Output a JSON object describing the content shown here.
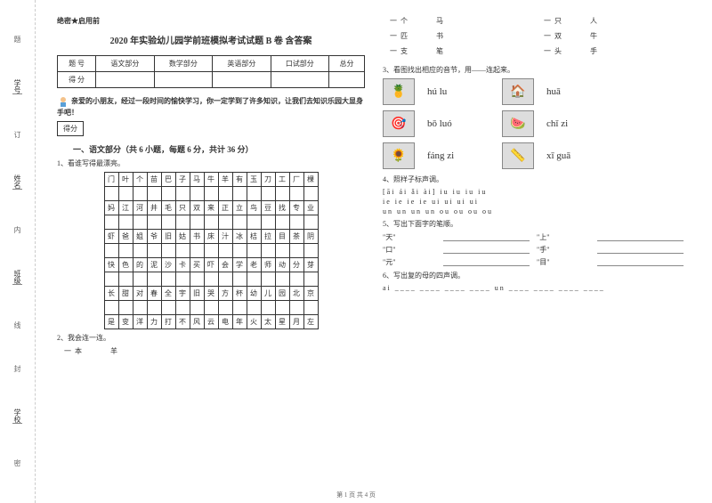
{
  "binding": {
    "labels": [
      "题",
      "学号",
      "订",
      "姓名",
      "内",
      "班级",
      "线",
      "封",
      "学校",
      "密"
    ]
  },
  "confidential": "绝密★启用前",
  "title": "2020 年实验幼儿园学前班模拟考试试题 B 卷 含答案",
  "score_table": {
    "headers": [
      "题  号",
      "语文部分",
      "数学部分",
      "英语部分",
      "口试部分",
      "总分"
    ],
    "row2_first": "得  分"
  },
  "greeting": "亲爱的小朋友，经过一段时间的愉快学习，你一定学到了许多知识，让我们去知识乐园大显身手吧！",
  "score_box": "得分",
  "section1": "一、语文部分（共 6 小题，每题 6 分，共计 36 分）",
  "q1": "1、看谁写得最漂亮。",
  "grid_rows": [
    [
      "门",
      "叶",
      "个",
      "苗",
      "巴",
      "子",
      "马",
      "牛",
      "羊",
      "有",
      "玉",
      "刀",
      "工",
      "厂",
      "棵"
    ],
    [
      "",
      "",
      "",
      "",
      "",
      "",
      "",
      "",
      "",
      "",
      "",
      "",
      "",
      "",
      ""
    ],
    [
      "妈",
      "江",
      "河",
      "井",
      "毛",
      "只",
      "双",
      "来",
      "正",
      "立",
      "鸟",
      "豆",
      "找",
      "专",
      "业"
    ],
    [
      "",
      "",
      "",
      "",
      "",
      "",
      "",
      "",
      "",
      "",
      "",
      "",
      "",
      "",
      ""
    ],
    [
      "虾",
      "爸",
      "姐",
      "爷",
      "旧",
      "姑",
      "书",
      "床",
      "汁",
      "冰",
      "桔",
      "拉",
      "目",
      "茶",
      "阴"
    ],
    [
      "",
      "",
      "",
      "",
      "",
      "",
      "",
      "",
      "",
      "",
      "",
      "",
      "",
      "",
      ""
    ],
    [
      "快",
      "色",
      "的",
      "泥",
      "沙",
      "卡",
      "买",
      "吓",
      "会",
      "学",
      "老",
      "师",
      "动",
      "分",
      "芽"
    ],
    [
      "",
      "",
      "",
      "",
      "",
      "",
      "",
      "",
      "",
      "",
      "",
      "",
      "",
      "",
      ""
    ],
    [
      "长",
      "甜",
      "对",
      "春",
      "全",
      "宇",
      "旧",
      "哭",
      "方",
      "杯",
      "幼",
      "儿",
      "园",
      "北",
      "京"
    ],
    [
      "",
      "",
      "",
      "",
      "",
      "",
      "",
      "",
      "",
      "",
      "",
      "",
      "",
      "",
      ""
    ],
    [
      "是",
      "变",
      "洋",
      "力",
      "打",
      "不",
      "风",
      "云",
      "电",
      "年",
      "火",
      "太",
      "星",
      "月",
      "左"
    ]
  ],
  "q2": "2、我会连一连。",
  "pairs_left": [
    [
      "一本",
      "羊"
    ]
  ],
  "pairs_right": [
    [
      "一个",
      "马"
    ],
    [
      "一只",
      "人"
    ],
    [
      "一匹",
      "书"
    ],
    [
      "一双",
      "牛"
    ],
    [
      "一支",
      "笔"
    ],
    [
      "一头",
      "手"
    ]
  ],
  "q3": "3、看图找出相应的音节，用——连起来。",
  "match_rows": [
    {
      "pinyin1": "hú lu",
      "pinyin2": "huā"
    },
    {
      "pinyin1": "bō luó",
      "pinyin2": "chǐ zi"
    },
    {
      "pinyin1": "fáng zi",
      "pinyin2": "xī guā"
    }
  ],
  "q4": "4、照样子标声调。",
  "tone_lines": [
    "[āi  ái  ǎi  ài]      iu  iu  iu  iu",
    "  ie  ie  ie  ie      ui  ui  ui  ui",
    "  un  un  un  un      ou  ou  ou  ou"
  ],
  "q5": "5、写出下面字的笔顺。",
  "stroke_chars": [
    [
      "\"天\"",
      "\"上\""
    ],
    [
      "\"口\"",
      "\"手\""
    ],
    [
      "\"元\"",
      "\"目\""
    ]
  ],
  "q6": "6、写出复的母的四声调。",
  "q6_line": "ai ____  ____  ____  ____    un ____  ____  ____  ____",
  "footer": "第 1 页 共 4 页"
}
